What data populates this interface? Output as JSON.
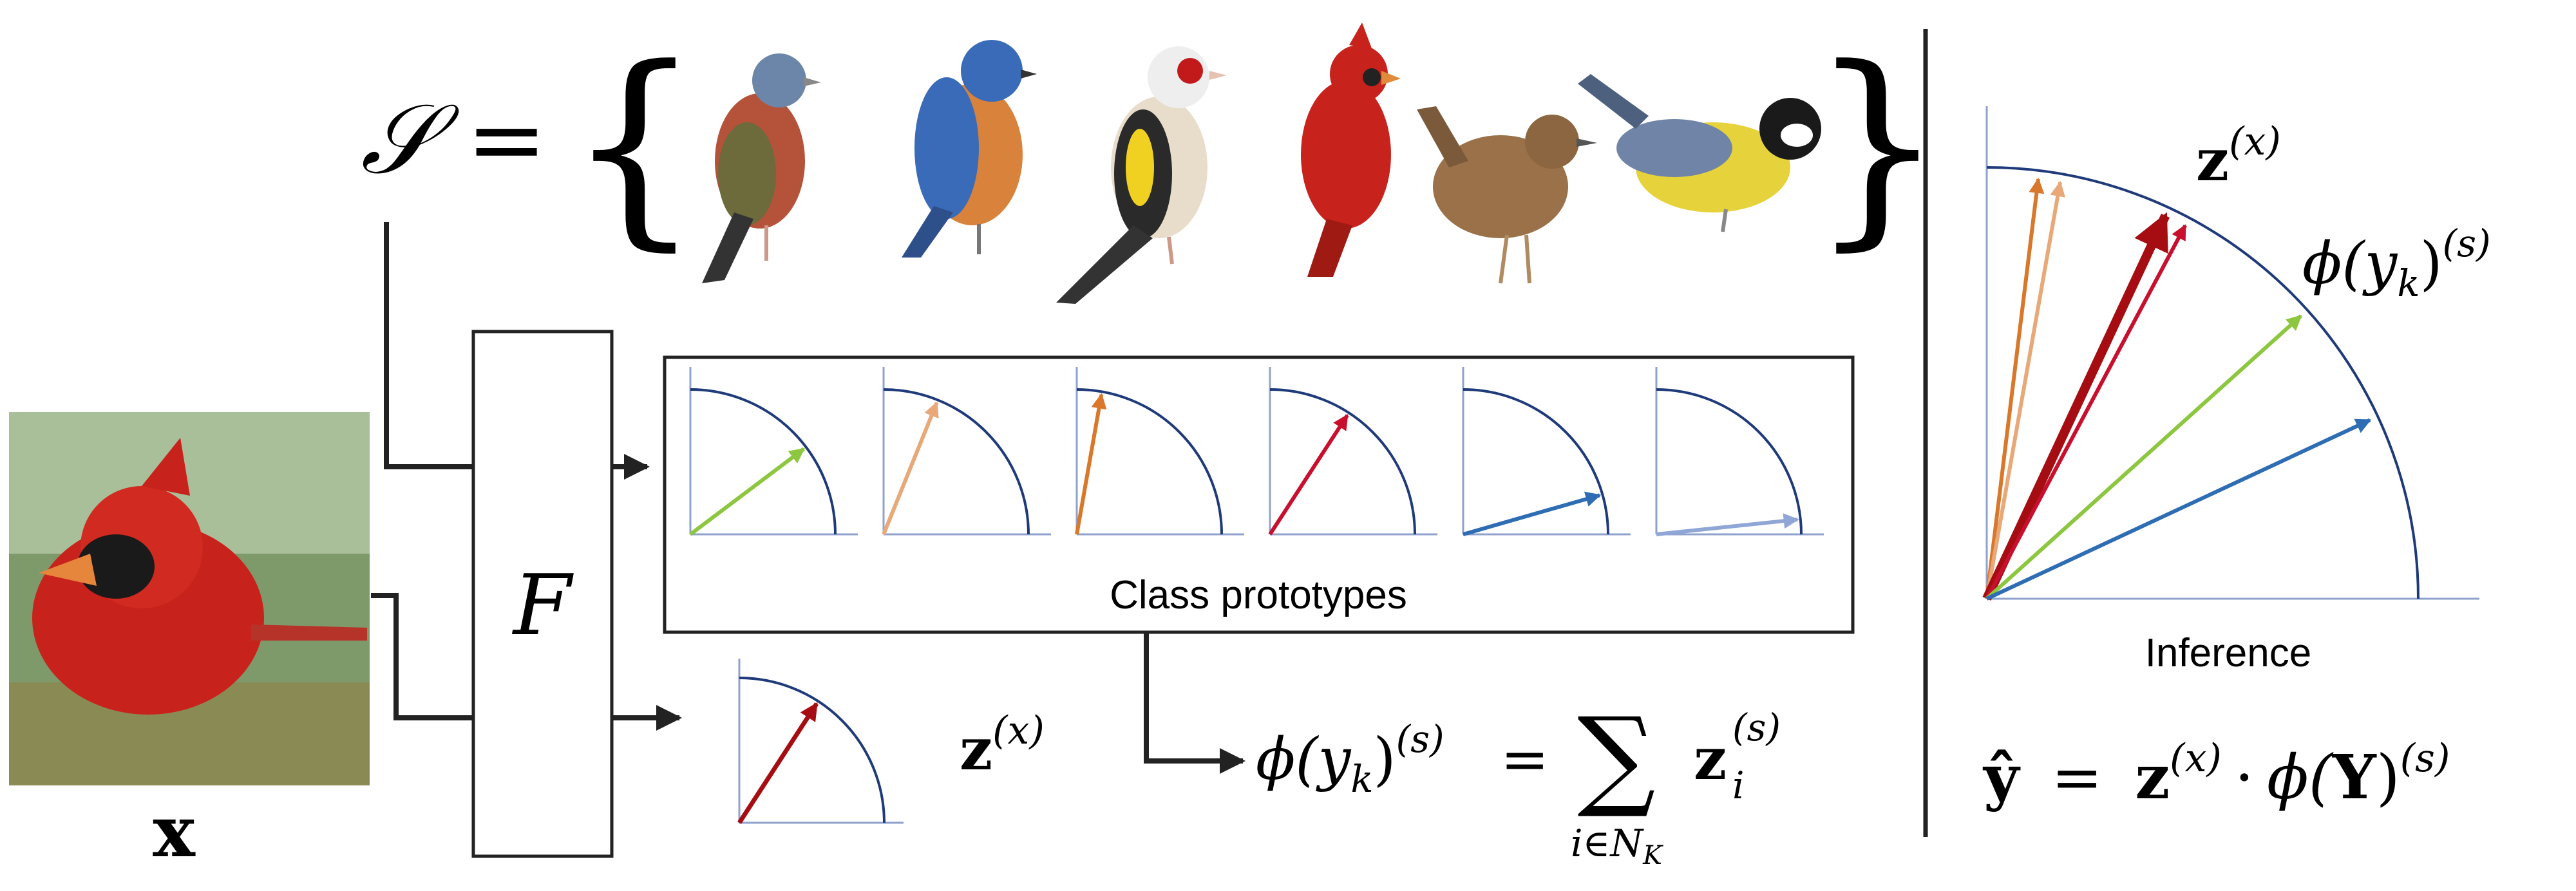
{
  "support_set": {
    "lhs": "𝒮 =",
    "open_brace": "{",
    "close_brace": "}",
    "birds": [
      "chaffinch",
      "eastern-bluebird",
      "goldfinch",
      "cardinal",
      "wren",
      "great-tit"
    ]
  },
  "query": {
    "label": "x",
    "image": "cardinal-photo"
  },
  "encoder": {
    "label": "F"
  },
  "prototypes": {
    "caption": "Class prototypes",
    "arrows": [
      {
        "angle_deg": 37,
        "color": "#8dc63f"
      },
      {
        "angle_deg": 68,
        "color": "#e8a878"
      },
      {
        "angle_deg": 80,
        "color": "#d9772b"
      },
      {
        "angle_deg": 57,
        "color": "#c8102e"
      },
      {
        "angle_deg": 16,
        "color": "#2e6db4"
      },
      {
        "angle_deg": 6,
        "color": "#8fa6d6"
      }
    ]
  },
  "query_embedding": {
    "label_main": "z",
    "label_sup": "(x)",
    "arrow": {
      "angle_deg": 57,
      "color": "#a50d12"
    }
  },
  "prototype_formula": {
    "lhs": "ϕ(y",
    "lhs_sub": "k",
    "lhs_close": ")",
    "lhs_sup": "(s)",
    "equals": "=",
    "sum": "∑",
    "sum_sub": "i∈N",
    "sum_sub_k": "K",
    "term": "z",
    "term_sub": "i",
    "term_sup": "(s)"
  },
  "inference": {
    "title": "Inference",
    "z_label": "z",
    "z_sup": "(x)",
    "phi_label": "ϕ(y",
    "phi_sub": "k",
    "phi_close": ")",
    "phi_sup": "(s)",
    "arrows": [
      {
        "angle_deg": 83,
        "color": "#d9772b",
        "bold": false
      },
      {
        "angle_deg": 80,
        "color": "#e8a878",
        "bold": false
      },
      {
        "angle_deg": 65,
        "color": "#a50d12",
        "bold": true
      },
      {
        "angle_deg": 62,
        "color": "#c8102e",
        "bold": false
      },
      {
        "angle_deg": 42,
        "color": "#8dc63f",
        "bold": false
      },
      {
        "angle_deg": 25,
        "color": "#2e6db4",
        "bold": false
      }
    ],
    "formula": {
      "lhs": "ŷ",
      "equals": "=",
      "z": "z",
      "z_sup": "(x)",
      "dot": "·",
      "phi": "ϕ(",
      "Y": "Y",
      "close": ")",
      "sup": "(s)"
    }
  },
  "colors": {
    "arc": "#1f3a7a",
    "axis": "#8fa2cc",
    "line": "#222222"
  }
}
